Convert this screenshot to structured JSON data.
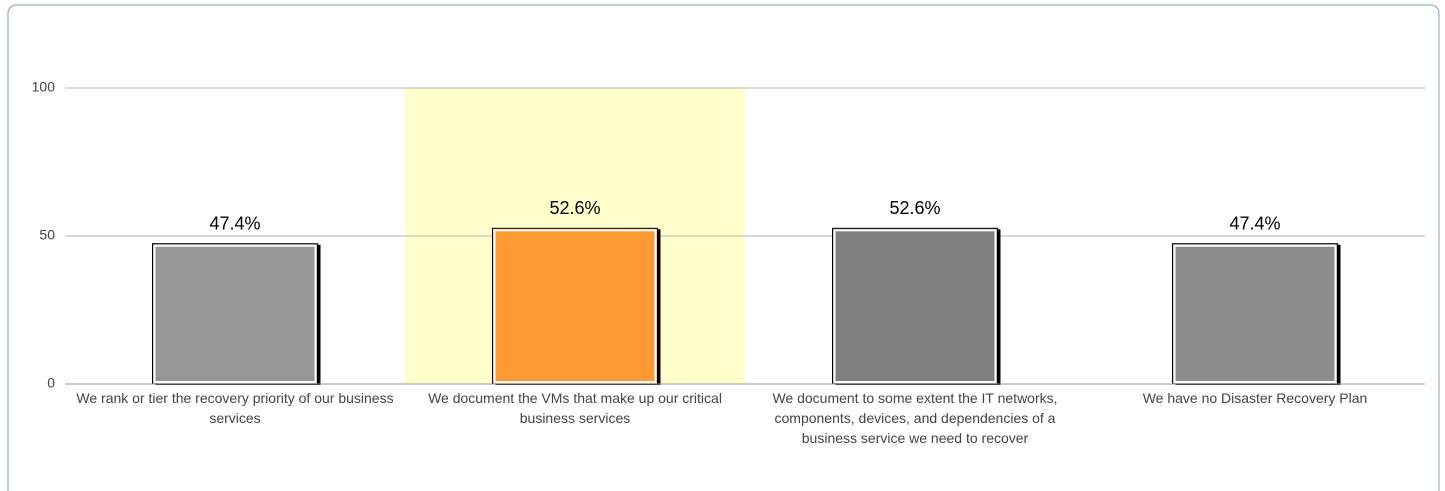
{
  "chart_data": {
    "type": "bar",
    "categories": [
      "We rank or tier the recovery priority of our business services",
      "We document the VMs that make up our critical business services",
      "We document to some extent the IT networks, components, devices, and dependencies of a business service we need to recover",
      "We have no Disaster Recovery Plan"
    ],
    "values": [
      47.4,
      52.6,
      52.6,
      47.4
    ],
    "value_labels": [
      "47.4%",
      "52.6%",
      "52.6%",
      "47.4%"
    ],
    "colors": [
      "#969696",
      "#ff9933",
      "#808080",
      "#8c8c8c"
    ],
    "highlight": 1,
    "highlight_color": "#ffffcc",
    "ylim": [
      0,
      100
    ],
    "yticks": [
      0,
      50,
      100
    ],
    "grid": true
  }
}
